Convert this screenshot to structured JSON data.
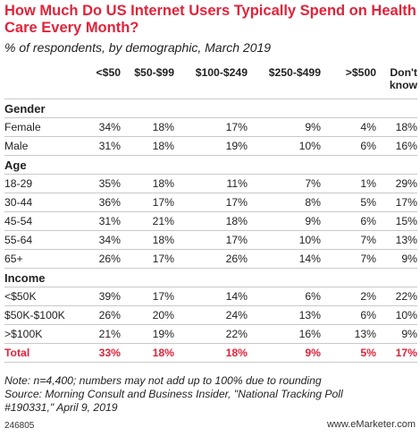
{
  "title": "How Much Do US Internet Users Typically Spend on Health Care Every Month?",
  "subtitle": "% of respondents, by demographic, March 2019",
  "chart_data": {
    "type": "table",
    "columns": [
      "",
      "<$50",
      "$50-$99",
      "$100-$249",
      "$250-$499",
      ">$500",
      "Don't know"
    ],
    "sections": [
      {
        "name": "Gender",
        "rows": [
          {
            "label": "Female",
            "values": [
              "34%",
              "18%",
              "17%",
              "9%",
              "4%",
              "18%"
            ]
          },
          {
            "label": "Male",
            "values": [
              "31%",
              "18%",
              "19%",
              "10%",
              "6%",
              "16%"
            ]
          }
        ]
      },
      {
        "name": "Age",
        "rows": [
          {
            "label": "18-29",
            "values": [
              "35%",
              "18%",
              "11%",
              "7%",
              "1%",
              "29%"
            ]
          },
          {
            "label": "30-44",
            "values": [
              "36%",
              "17%",
              "17%",
              "8%",
              "5%",
              "17%"
            ]
          },
          {
            "label": "45-54",
            "values": [
              "31%",
              "21%",
              "18%",
              "9%",
              "6%",
              "15%"
            ]
          },
          {
            "label": "55-64",
            "values": [
              "34%",
              "18%",
              "17%",
              "10%",
              "7%",
              "13%"
            ]
          },
          {
            "label": "65+",
            "values": [
              "26%",
              "17%",
              "26%",
              "14%",
              "7%",
              "9%"
            ]
          }
        ]
      },
      {
        "name": "Income",
        "rows": [
          {
            "label": "<$50K",
            "values": [
              "39%",
              "17%",
              "14%",
              "6%",
              "2%",
              "22%"
            ]
          },
          {
            "label": "$50K-$100K",
            "values": [
              "26%",
              "20%",
              "24%",
              "13%",
              "6%",
              "10%"
            ]
          },
          {
            "label": ">$100K",
            "values": [
              "21%",
              "19%",
              "22%",
              "16%",
              "13%",
              "9%"
            ]
          }
        ]
      }
    ],
    "total": {
      "label": "Total",
      "values": [
        "33%",
        "18%",
        "18%",
        "9%",
        "5%",
        "17%"
      ]
    }
  },
  "note_lines": [
    "Note: n=4,400; numbers may not add up to 100% due to rounding",
    "Source: Morning Consult and Business Insider, \"National Tracking Poll",
    "#190331,\" April 9, 2019"
  ],
  "footer": {
    "id": "246805",
    "brand": "www.eMarketer.com"
  },
  "colors": {
    "accent": "#e2233a",
    "text": "#222222",
    "rule": "#c9c9c9"
  }
}
